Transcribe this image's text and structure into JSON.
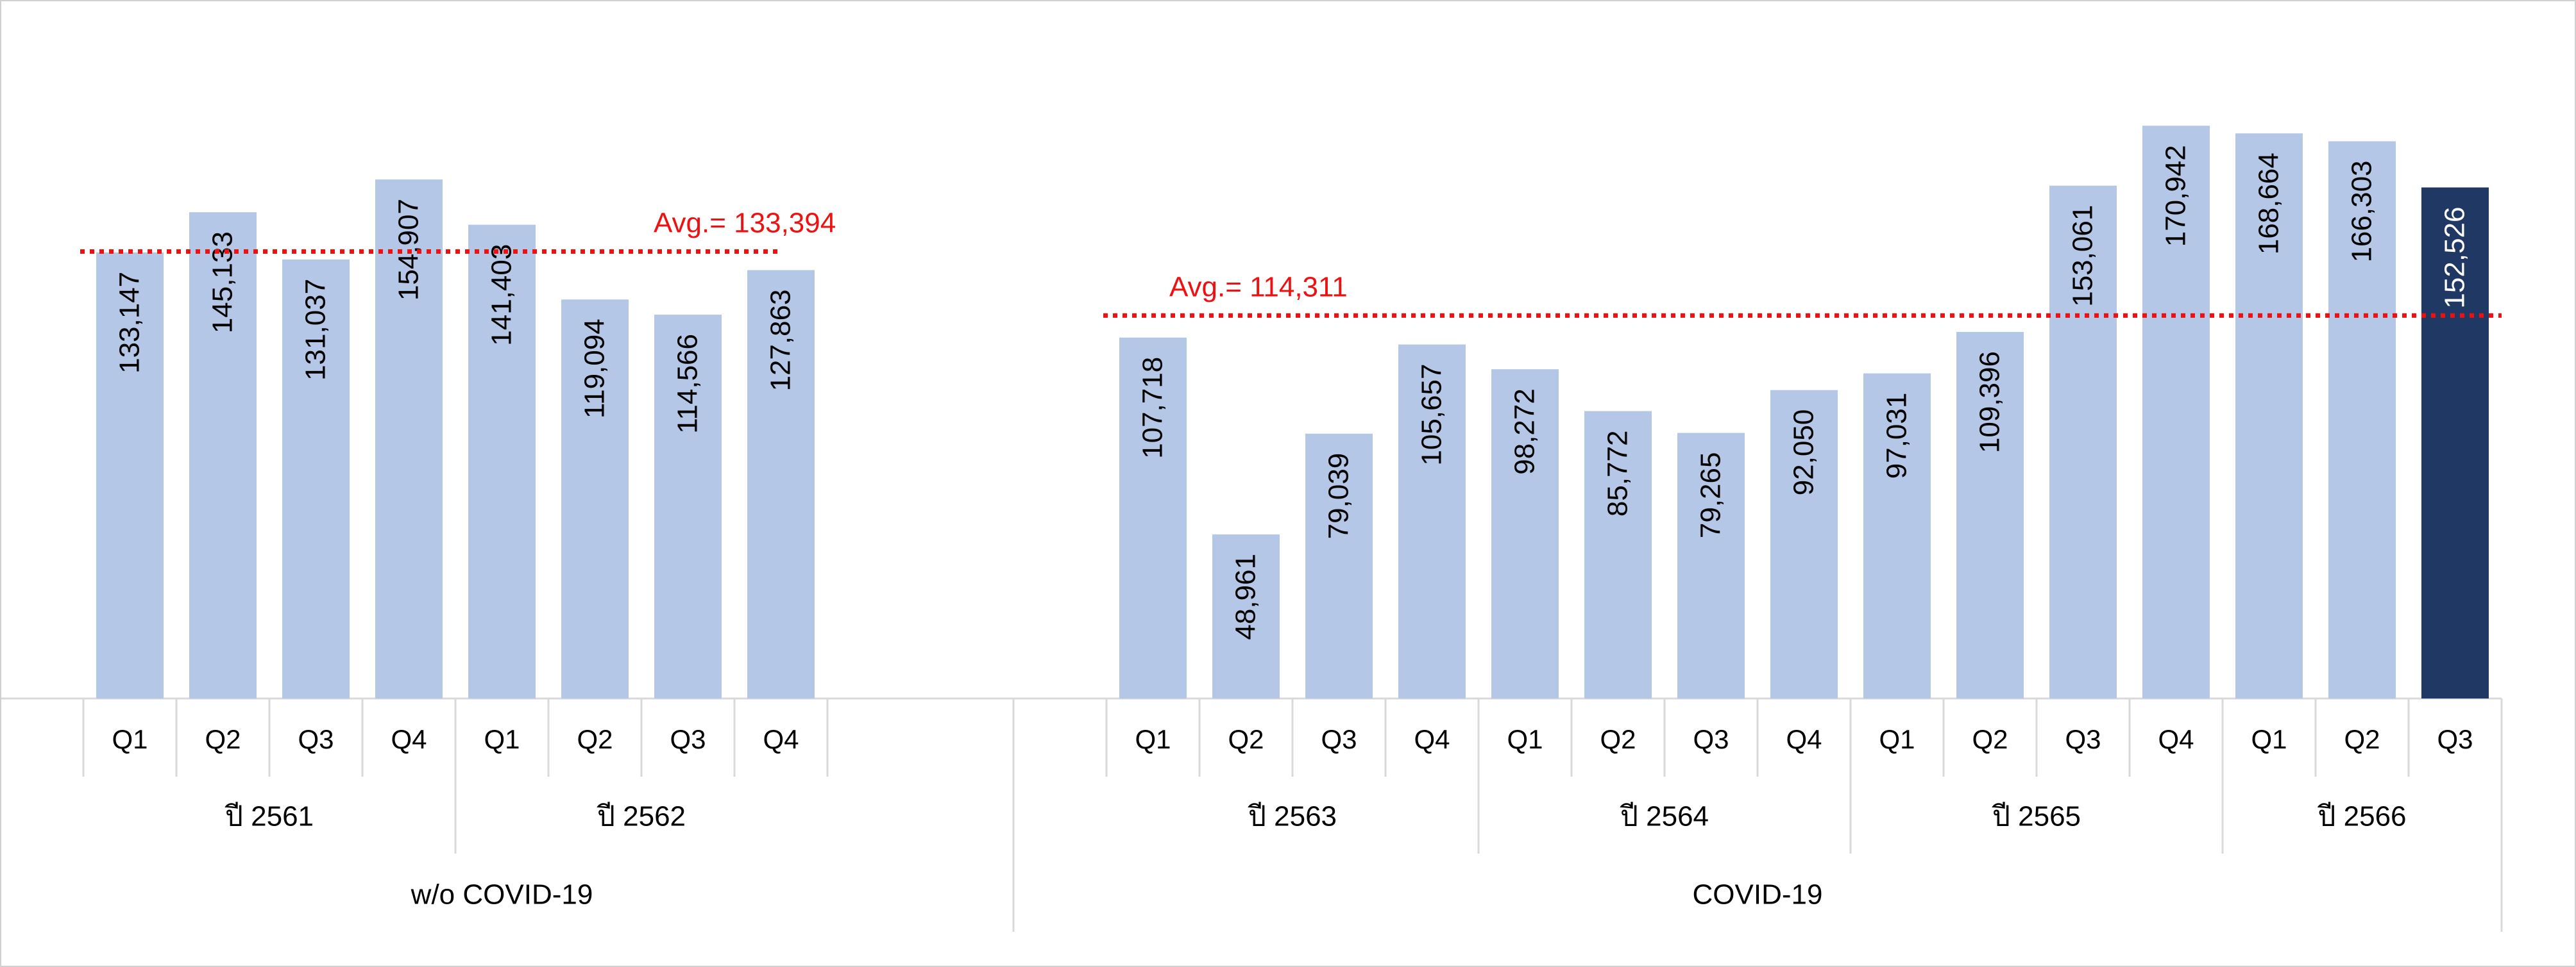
{
  "chart_data": {
    "type": "bar",
    "title": "",
    "xlabel": "",
    "ylabel": "",
    "ylim": [
      0,
      175000
    ],
    "grid": false,
    "legend": "none",
    "groups": [
      {
        "label": "w/o COVID-19",
        "years": [
          {
            "label": "ปี 2561",
            "quarters": [
              "Q1",
              "Q2",
              "Q3",
              "Q4"
            ],
            "values": [
              133147,
              145133,
              131037,
              154907
            ]
          },
          {
            "label": "ปี 2562",
            "quarters": [
              "Q1",
              "Q2",
              "Q3",
              "Q4"
            ],
            "values": [
              141403,
              119094,
              114566,
              127863
            ]
          }
        ],
        "average": {
          "value": 133394,
          "label": "Avg.= 133,394"
        }
      },
      {
        "label": "COVID-19",
        "years": [
          {
            "label": "ปี 2563",
            "quarters": [
              "Q1",
              "Q2",
              "Q3",
              "Q4"
            ],
            "values": [
              107718,
              48961,
              79039,
              105657
            ]
          },
          {
            "label": "ปี 2564",
            "quarters": [
              "Q1",
              "Q2",
              "Q3",
              "Q4"
            ],
            "values": [
              98272,
              85772,
              79265,
              92050
            ]
          },
          {
            "label": "ปี 2565",
            "quarters": [
              "Q1",
              "Q2",
              "Q3",
              "Q4"
            ],
            "values": [
              97031,
              109396,
              153061,
              170942
            ]
          },
          {
            "label": "ปี 2566",
            "quarters": [
              "Q1",
              "Q2",
              "Q3"
            ],
            "values": [
              168664,
              166303,
              152526
            ]
          }
        ],
        "average": {
          "value": 114311,
          "label": "Avg.= 114,311"
        }
      }
    ],
    "colors": {
      "bar": "#b4c7e7",
      "highlight_bar": "#203864",
      "average_line": "#ee1111",
      "axis_line": "#d9d9d9",
      "text": "#000000",
      "highlight_text": "#ffffff"
    },
    "highlight": {
      "group": 1,
      "year": 3,
      "quarter": 2
    }
  }
}
